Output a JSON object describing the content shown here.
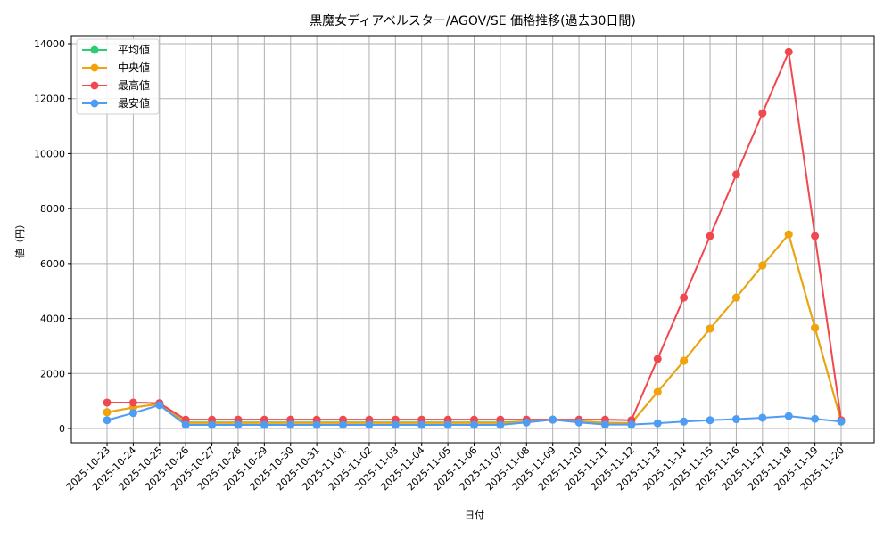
{
  "chart_data": {
    "type": "line",
    "title": "黒魔女ディアベルスター/AGOV/SE 価格推移(過去30日間)",
    "xlabel": "日付",
    "ylabel": "値（円）",
    "ylim": [
      -500,
      14400
    ],
    "yticks": [
      0,
      2000,
      4000,
      6000,
      8000,
      10000,
      12000,
      14000
    ],
    "grid": true,
    "legend_position": "upper left",
    "categories": [
      "2025-10-23",
      "2025-10-24",
      "2025-10-25",
      "2025-10-26",
      "2025-10-27",
      "2025-10-28",
      "2025-10-29",
      "2025-10-30",
      "2025-10-31",
      "2025-11-01",
      "2025-11-02",
      "2025-11-03",
      "2025-11-04",
      "2025-11-05",
      "2025-11-06",
      "2025-11-07",
      "2025-11-08",
      "2025-11-09",
      "2025-11-10",
      "2025-11-11",
      "2025-11-12",
      "2025-11-13",
      "2025-11-14",
      "2025-11-15",
      "2025-11-16",
      "2025-11-17",
      "2025-11-18",
      "2025-11-19",
      "2025-11-20"
    ],
    "series": [
      {
        "name": "平均値",
        "color": "#2ecc71",
        "values": [
          590,
          760,
          890,
          220,
          220,
          220,
          220,
          220,
          220,
          220,
          220,
          220,
          220,
          220,
          220,
          220,
          250,
          320,
          260,
          210,
          200,
          1330,
          2460,
          3630,
          4760,
          5930,
          7060,
          3660,
          280
        ]
      },
      {
        "name": "中央値",
        "color": "#f5a20a",
        "values": [
          590,
          760,
          890,
          200,
          200,
          200,
          200,
          200,
          200,
          200,
          200,
          200,
          200,
          200,
          200,
          200,
          240,
          320,
          250,
          200,
          190,
          1330,
          2460,
          3630,
          4760,
          5930,
          7060,
          3660,
          280
        ]
      },
      {
        "name": "最高値",
        "color": "#f0484e",
        "values": [
          940,
          940,
          920,
          320,
          320,
          320,
          320,
          320,
          320,
          320,
          320,
          320,
          320,
          320,
          320,
          320,
          320,
          320,
          320,
          320,
          300,
          2530,
          4760,
          7000,
          9240,
          11470,
          13700,
          7000,
          300
        ]
      },
      {
        "name": "最安値",
        "color": "#4f9cf5",
        "values": [
          300,
          560,
          850,
          130,
          130,
          130,
          130,
          130,
          130,
          130,
          130,
          130,
          130,
          130,
          130,
          130,
          220,
          320,
          220,
          140,
          140,
          190,
          250,
          300,
          340,
          390,
          450,
          350,
          250
        ]
      }
    ]
  }
}
